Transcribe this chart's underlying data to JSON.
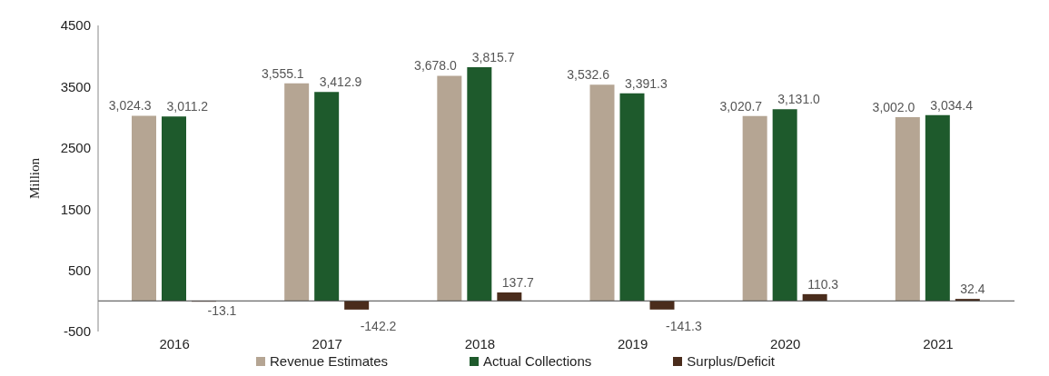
{
  "chart_data": {
    "type": "bar",
    "ylabel": "Million",
    "categories": [
      "2016",
      "2017",
      "2018",
      "2019",
      "2020",
      "2021"
    ],
    "series": [
      {
        "name": "Revenue Estimates",
        "color": "#b5a593",
        "values": [
          3024.3,
          3555.1,
          3678.0,
          3532.6,
          3020.7,
          3002.0
        ],
        "value_labels": [
          "3,024.3",
          "3,555.1",
          "3,678.0",
          "3,532.6",
          "3,020.7",
          "3,002.0"
        ]
      },
      {
        "name": "Actual Collections",
        "color": "#1e5a2c",
        "values": [
          3011.2,
          3412.9,
          3815.7,
          3391.3,
          3131.0,
          3034.4
        ],
        "value_labels": [
          "3,011.2",
          "3,412.9",
          "3,815.7",
          "3,391.3",
          "3,131.0",
          "3,034.4"
        ]
      },
      {
        "name": "Surplus/Deficit",
        "color": "#4a2c1c",
        "values": [
          -13.1,
          -142.2,
          137.7,
          -141.3,
          110.3,
          32.4
        ],
        "value_labels": [
          "-13.1",
          "-142.2",
          "137.7",
          "-141.3",
          "110.3",
          "32.4"
        ]
      }
    ],
    "ylim": [
      -500,
      4500
    ],
    "yticks": [
      -500,
      500,
      1500,
      2500,
      3500,
      4500
    ],
    "grid": false,
    "legend": "bottom"
  }
}
